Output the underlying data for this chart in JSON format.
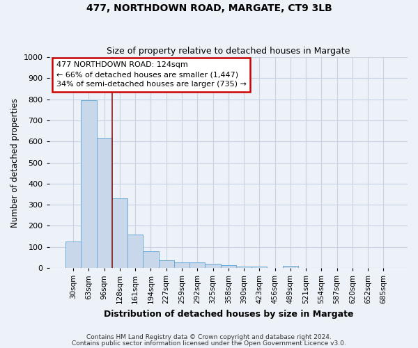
{
  "title1": "477, NORTHDOWN ROAD, MARGATE, CT9 3LB",
  "title2": "Size of property relative to detached houses in Margate",
  "xlabel": "Distribution of detached houses by size in Margate",
  "ylabel": "Number of detached properties",
  "categories": [
    "30sqm",
    "63sqm",
    "96sqm",
    "128sqm",
    "161sqm",
    "194sqm",
    "227sqm",
    "259sqm",
    "292sqm",
    "325sqm",
    "358sqm",
    "390sqm",
    "423sqm",
    "456sqm",
    "489sqm",
    "521sqm",
    "554sqm",
    "587sqm",
    "620sqm",
    "652sqm",
    "685sqm"
  ],
  "values": [
    125,
    795,
    618,
    330,
    160,
    78,
    38,
    27,
    25,
    20,
    13,
    8,
    8,
    0,
    10,
    0,
    0,
    0,
    0,
    0,
    0
  ],
  "bar_color": "#c8d8ea",
  "bar_edge_color": "#6aaad4",
  "grid_color": "#c8d4e4",
  "background_color": "#edf1f8",
  "vline_color": "#8b1a1a",
  "annotation_text": "477 NORTHDOWN ROAD: 124sqm\n← 66% of detached houses are smaller (1,447)\n34% of semi-detached houses are larger (735) →",
  "annotation_box_color": "#ffffff",
  "annotation_box_edge_color": "#cc0000",
  "ylim": [
    0,
    1000
  ],
  "yticks": [
    0,
    100,
    200,
    300,
    400,
    500,
    600,
    700,
    800,
    900,
    1000
  ],
  "footer1": "Contains HM Land Registry data © Crown copyright and database right 2024.",
  "footer2": "Contains public sector information licensed under the Open Government Licence v3.0."
}
